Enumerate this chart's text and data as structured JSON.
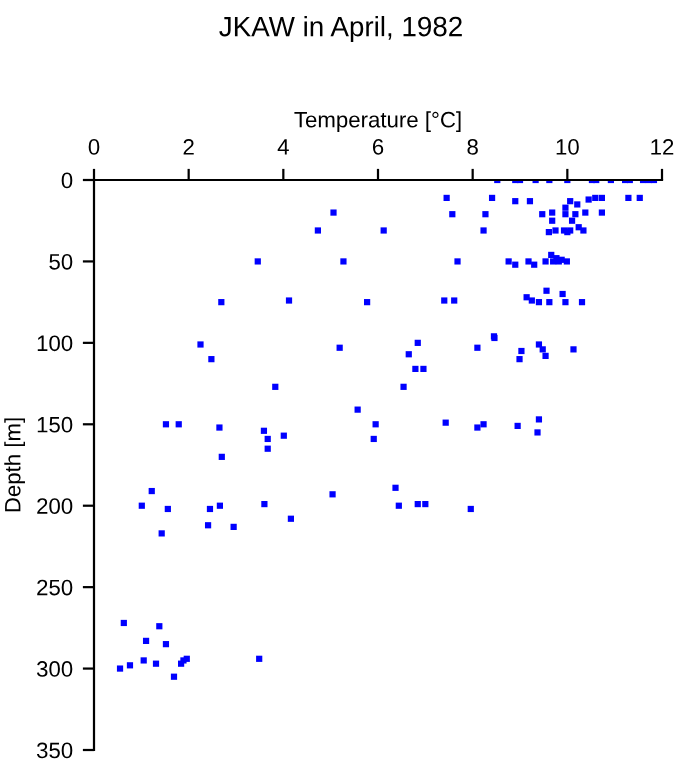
{
  "chart_data": {
    "type": "scatter",
    "title": "JKAW in April, 1982",
    "xlabel": "Temperature [°C]",
    "ylabel": "Depth [m]",
    "xlim": [
      0,
      12
    ],
    "xticks": [
      0,
      2,
      4,
      6,
      8,
      10,
      12
    ],
    "ylim": [
      350,
      0
    ],
    "yticks": [
      0,
      50,
      100,
      150,
      200,
      250,
      300,
      350
    ],
    "marker": "square",
    "grid": false,
    "legend": false,
    "series": [
      {
        "color": "#0000ff",
        "x": [
          8.52,
          8.9,
          9.0,
          9.33,
          9.62,
          10.0,
          10.52,
          10.61,
          10.92,
          11.22,
          11.32,
          11.6,
          11.72,
          11.83,
          7.45,
          8.41,
          8.9,
          9.21,
          9.96,
          10.06,
          10.21,
          10.45,
          10.59,
          10.73,
          11.29,
          11.53,
          5.06,
          7.57,
          8.27,
          9.47,
          9.68,
          9.96,
          10.17,
          10.38,
          10.73,
          9.68,
          10.1,
          4.73,
          6.12,
          8.23,
          9.61,
          9.75,
          9.93,
          10.06,
          10.0,
          10.24,
          10.34,
          3.46,
          5.27,
          7.68,
          8.76,
          8.9,
          9.18,
          9.3,
          9.54,
          9.7,
          9.82,
          9.99,
          9.66,
          9.77,
          9.88,
          2.69,
          4.12,
          5.77,
          7.4,
          7.61,
          9.14,
          9.25,
          9.4,
          9.62,
          9.56,
          9.9,
          9.96,
          10.31,
          8.45,
          2.25,
          2.48,
          3.83,
          5.19,
          5.57,
          5.95,
          5.91,
          6.54,
          6.65,
          6.79,
          6.84,
          6.96,
          7.43,
          8.1,
          8.1,
          8.23,
          8.46,
          8.95,
          8.99,
          9.03,
          9.4,
          9.48,
          9.54,
          10.13,
          9.4,
          9.37,
          1.52,
          1.79,
          2.65,
          3.59,
          3.67,
          4.01,
          3.67,
          2.7,
          1.22,
          1.01,
          1.56,
          2.45,
          2.66,
          3.6,
          5.04,
          6.37,
          6.44,
          6.84,
          7.0,
          7.96,
          4.16,
          2.41,
          2.95,
          1.43,
          0.63,
          1.38,
          1.1,
          1.52,
          0.55,
          0.76,
          1.05,
          1.31,
          1.69,
          1.84,
          1.89,
          1.96,
          3.49
        ],
        "values": [
          0,
          0,
          0,
          0,
          0,
          0,
          0,
          0,
          0,
          0,
          0,
          0,
          0,
          0,
          11,
          11,
          13,
          13,
          17,
          13,
          15,
          12,
          11,
          11,
          11,
          11,
          20,
          21,
          21,
          21,
          20,
          21,
          21,
          20,
          20,
          25,
          25,
          31,
          31,
          31,
          32,
          31,
          31,
          31,
          32,
          29,
          31,
          50,
          50,
          50,
          50,
          52,
          50,
          52,
          50,
          50,
          50,
          50,
          46,
          48,
          49,
          75,
          74,
          75,
          74,
          74,
          72,
          74,
          75,
          75,
          68,
          70,
          75,
          75,
          96,
          101,
          110,
          127,
          103,
          141,
          150,
          159,
          127,
          107,
          116,
          100,
          116,
          149,
          103,
          152,
          150,
          97,
          151,
          110,
          105,
          101,
          104,
          108,
          104,
          147,
          155,
          150,
          150,
          152,
          154,
          159,
          157,
          165,
          170,
          191,
          200,
          202,
          202,
          200,
          199,
          193,
          189,
          200,
          199,
          199,
          202,
          208,
          212,
          213,
          217,
          272,
          274,
          283,
          285,
          300,
          298,
          295,
          297,
          305,
          297,
          295,
          294,
          294
        ]
      }
    ]
  }
}
